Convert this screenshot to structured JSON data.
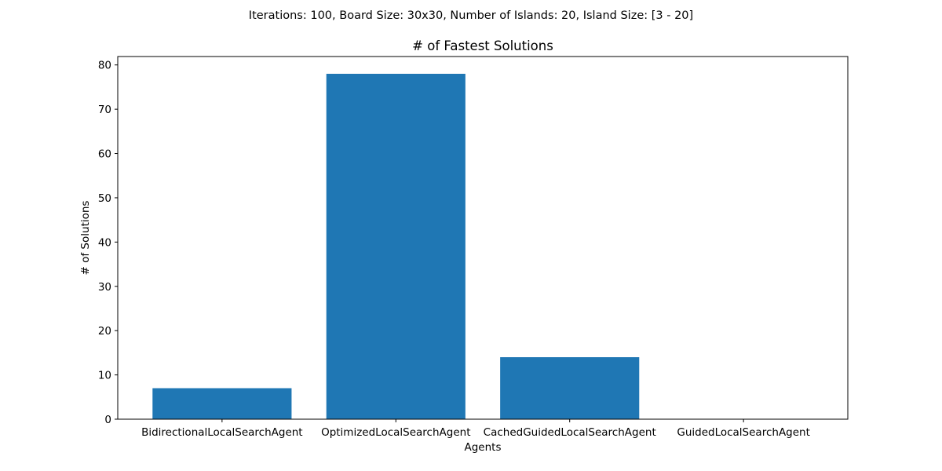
{
  "figure": {
    "suptitle": "Iterations: 100, Board Size: 30x30, Number of Islands: 20, Island Size: [3 - 20]"
  },
  "chart_data": {
    "type": "bar",
    "title": "# of Fastest Solutions",
    "xlabel": "Agents",
    "ylabel": "# of Solutions",
    "categories": [
      "BidirectionalLocalSearchAgent",
      "OptimizedLocalSearchAgent",
      "CachedGuidedLocalSearchAgent",
      "GuidedLocalSearchAgent"
    ],
    "values": [
      7,
      78,
      14,
      0
    ],
    "ylim": [
      0,
      81.9
    ],
    "yticks": [
      0,
      10,
      20,
      30,
      40,
      50,
      60,
      70,
      80
    ],
    "bar_color": "#1f77b4",
    "grid": false,
    "legend": "none"
  }
}
